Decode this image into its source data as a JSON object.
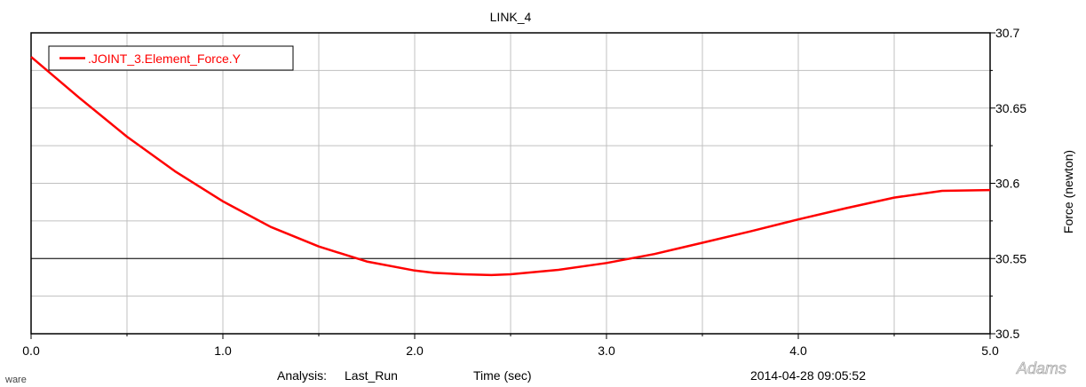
{
  "chart_data": {
    "type": "line",
    "title": "LINK_4",
    "xlabel": "Time (sec)",
    "ylabel": "Force (newton)",
    "xlim": [
      0.0,
      5.0
    ],
    "ylim": [
      30.5,
      30.7
    ],
    "x_ticks": [
      0.0,
      1.0,
      2.0,
      3.0,
      4.0,
      5.0
    ],
    "x_tick_labels": [
      "0.0",
      "1.0",
      "2.0",
      "3.0",
      "4.0",
      "5.0"
    ],
    "x_minor_ticks": [
      0.5,
      1.5,
      2.5,
      3.5,
      4.5
    ],
    "y_ticks": [
      30.5,
      30.55,
      30.6,
      30.65,
      30.7
    ],
    "y_tick_labels": [
      "30.5",
      "30.55",
      "30.6",
      "30.65",
      "30.7"
    ],
    "y_minor_ticks": [
      30.525,
      30.575,
      30.625,
      30.675
    ],
    "y_axis_side": "right",
    "grid": true,
    "reference_line_y": 30.55,
    "legend_position": "top-left",
    "series": [
      {
        "name": ".JOINT_3.Element_Force.Y",
        "color": "#ff0000",
        "x": [
          0.0,
          0.25,
          0.5,
          0.75,
          1.0,
          1.25,
          1.5,
          1.75,
          2.0,
          2.1,
          2.25,
          2.4,
          2.5,
          2.75,
          3.0,
          3.25,
          3.5,
          3.75,
          4.0,
          4.25,
          4.5,
          4.75,
          5.0
        ],
        "y": [
          30.684,
          30.657,
          30.631,
          30.608,
          30.588,
          30.571,
          30.558,
          30.548,
          30.542,
          30.5405,
          30.5395,
          30.539,
          30.5395,
          30.5425,
          30.547,
          30.553,
          30.5605,
          30.568,
          30.576,
          30.5835,
          30.5905,
          30.595,
          30.5955
        ]
      }
    ]
  },
  "footer": {
    "left_text": "ware",
    "analysis_label": "Analysis:",
    "analysis_value": "Last_Run",
    "timestamp": "2014-04-28 09:05:52",
    "logo_text": "Adams"
  }
}
